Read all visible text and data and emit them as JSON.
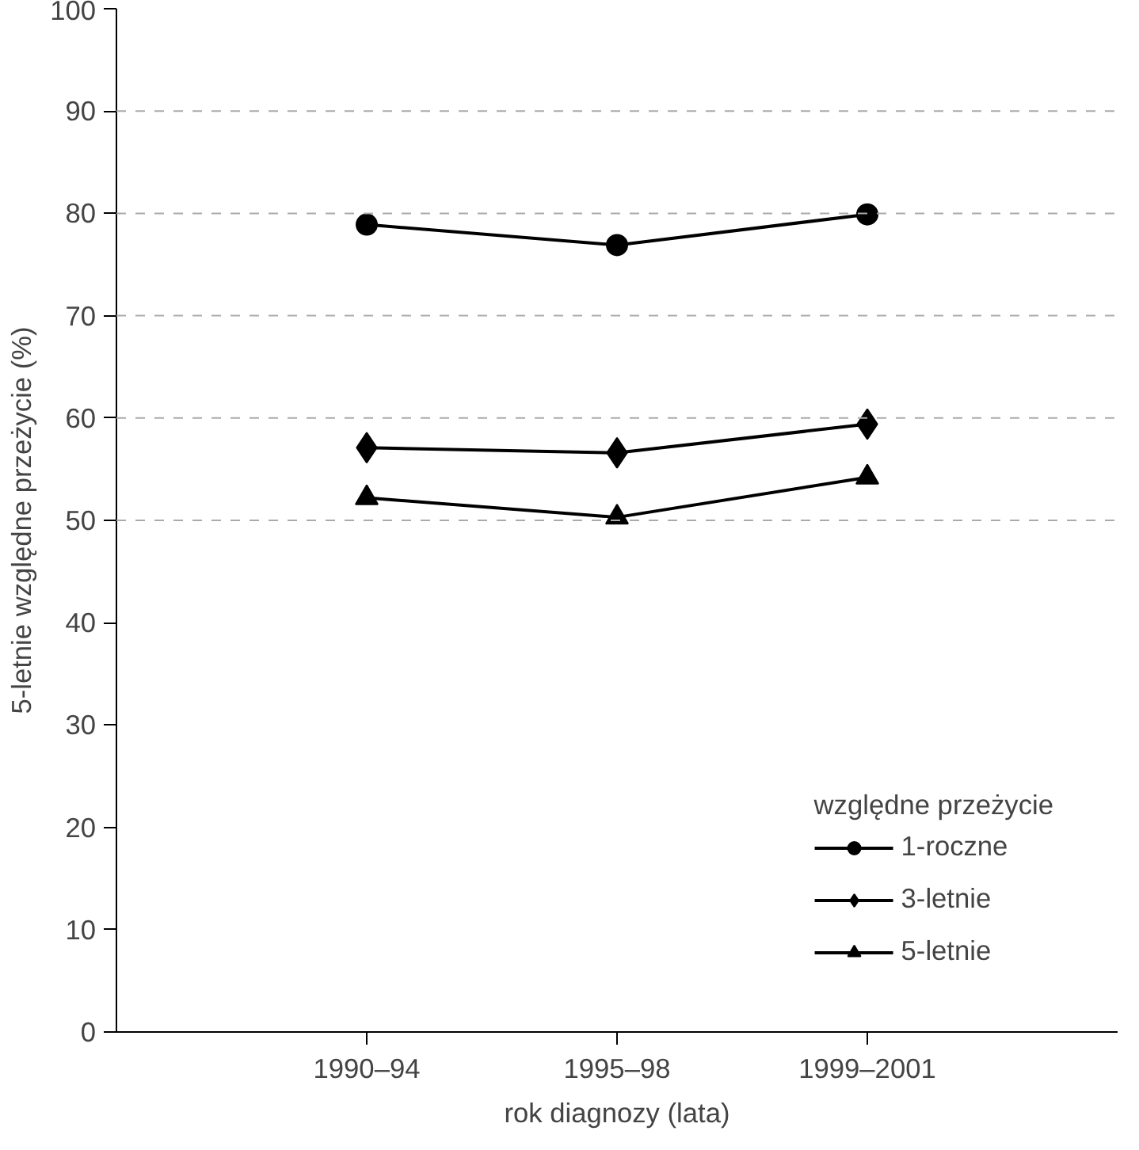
{
  "chart_data": {
    "type": "line",
    "xlabel": "rok diagnozy (lata)",
    "ylabel": "5-letnie względne przeżycie (%)",
    "legend_title": "względne przeżycie",
    "legend": "bottom right",
    "categories": [
      "1990–94",
      "1995–98",
      "1999–2001"
    ],
    "series": [
      {
        "name": "1-roczne",
        "color": "#000000",
        "marker": "circle",
        "values": [
          78.9,
          76.9,
          79.9
        ]
      },
      {
        "name": "3-letnie",
        "color": "#000000",
        "marker": "diamond",
        "values": [
          57.1,
          56.6,
          59.4
        ]
      },
      {
        "name": "5-letnie",
        "color": "#000000",
        "marker": "triangle",
        "values": [
          52.2,
          50.3,
          54.2
        ]
      }
    ],
    "ylim": [
      0,
      100
    ],
    "yticks": [
      0,
      10,
      20,
      30,
      40,
      50,
      60,
      70,
      80,
      90,
      100
    ],
    "ref_lines": [
      {
        "axis": "y",
        "value": 50,
        "color": "#aaaaaa",
        "line_style": "dashed"
      },
      {
        "axis": "y",
        "value": 60,
        "color": "#aaaaaa",
        "line_style": "dashed"
      },
      {
        "axis": "y",
        "value": 70,
        "color": "#aaaaaa",
        "line_style": "dashed"
      },
      {
        "axis": "y",
        "value": 80,
        "color": "#aaaaaa",
        "line_style": "dashed"
      },
      {
        "axis": "y",
        "value": 90,
        "color": "#aaaaaa",
        "line_style": "dashed"
      }
    ],
    "line_style": "solid"
  }
}
